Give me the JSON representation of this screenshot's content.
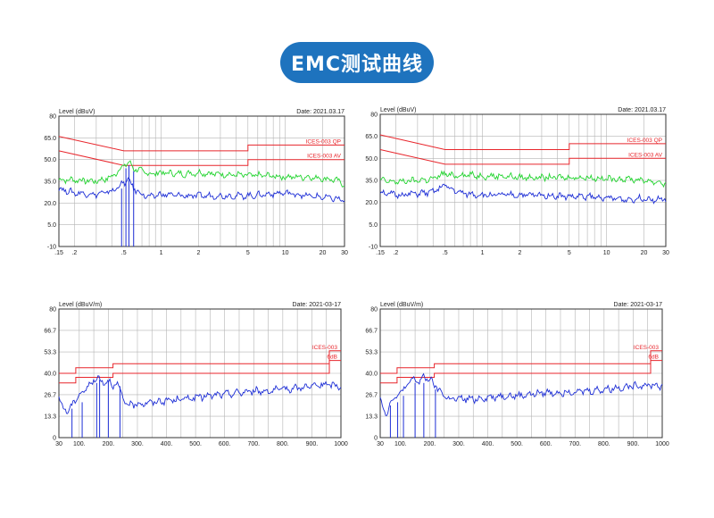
{
  "page_title": "EMC测试曲线",
  "colors": {
    "title_bg": "#1e73be",
    "limit": "#e8262c",
    "trace_peak": "#22d42f",
    "trace_avg": "#1d2ed6",
    "grid": "#b4b4b4"
  },
  "chart_data": [
    {
      "type": "line",
      "scale": "log",
      "ylabel": "Level (dBuV)",
      "date": "Date: 2021.03.17",
      "xlim": [
        0.15,
        30
      ],
      "ylim": [
        -10,
        80
      ],
      "yticks": [
        80,
        65.0,
        50.0,
        35.0,
        20.0,
        5.0,
        -10
      ],
      "ytick_labels": [
        "80",
        "65.0",
        "50.0",
        "35.0",
        "20.0",
        "5.0",
        "-10"
      ],
      "xticks": [
        0.15,
        0.2,
        0.5,
        1,
        2,
        5,
        10,
        20,
        30
      ],
      "xtick_labels": [
        ".15",
        ".2",
        ".5",
        "1",
        "2",
        "5",
        "10",
        "20",
        "30"
      ],
      "limit_labels": [
        "ICES-003 QP",
        "ICES-003 AV"
      ],
      "limits": [
        {
          "x": [
            0.15,
            0.5,
            5,
            5,
            30
          ],
          "y": [
            66,
            56,
            56,
            60,
            60
          ]
        },
        {
          "x": [
            0.15,
            0.5,
            5,
            5,
            30
          ],
          "y": [
            56,
            46,
            46,
            50,
            50
          ]
        }
      ],
      "series": [
        {
          "values": [
            [
              0.15,
              36
            ],
            [
              0.2,
              36
            ],
            [
              0.3,
              35
            ],
            [
              0.4,
              38
            ],
            [
              0.5,
              46
            ],
            [
              0.55,
              48
            ],
            [
              0.6,
              44
            ],
            [
              0.7,
              42
            ],
            [
              0.8,
              40
            ],
            [
              1,
              41
            ],
            [
              1.5,
              40
            ],
            [
              2,
              41
            ],
            [
              3,
              40
            ],
            [
              5,
              39
            ],
            [
              7,
              39
            ],
            [
              10,
              38
            ],
            [
              15,
              38
            ],
            [
              20,
              37
            ],
            [
              25,
              36
            ],
            [
              30,
              33
            ]
          ]
        },
        {
          "values": [
            [
              0.15,
              30
            ],
            [
              0.2,
              27
            ],
            [
              0.3,
              26
            ],
            [
              0.4,
              28
            ],
            [
              0.5,
              34
            ],
            [
              0.55,
              36
            ],
            [
              0.6,
              30
            ],
            [
              0.7,
              26
            ],
            [
              0.8,
              24
            ],
            [
              1,
              26
            ],
            [
              1.5,
              25
            ],
            [
              2,
              25
            ],
            [
              3,
              25
            ],
            [
              5,
              25
            ],
            [
              7,
              26
            ],
            [
              10,
              27
            ],
            [
              15,
              25
            ],
            [
              20,
              24
            ],
            [
              25,
              23
            ],
            [
              30,
              22
            ]
          ]
        }
      ],
      "spikes": [
        [
          0.48,
          30
        ],
        [
          0.52,
          44
        ],
        [
          0.55,
          46
        ],
        [
          0.6,
          42
        ]
      ]
    },
    {
      "type": "line",
      "scale": "log",
      "ylabel": "Level (dBuV)",
      "date": "Date: 2021.03.17",
      "xlim": [
        0.15,
        30
      ],
      "ylim": [
        -10,
        80
      ],
      "yticks": [
        80,
        65.0,
        50.0,
        35.0,
        20.0,
        5.0,
        -10
      ],
      "ytick_labels": [
        "80",
        "65.0",
        "50.0",
        "35.0",
        "20.0",
        "5.0",
        "-10"
      ],
      "xticks": [
        0.15,
        0.2,
        0.5,
        1,
        2,
        5,
        10,
        20,
        30
      ],
      "xtick_labels": [
        ".15",
        ".2",
        ".5",
        "1",
        "2",
        "5",
        "10",
        "20",
        "30"
      ],
      "limit_labels": [
        "ICES-003 QP",
        "ICES-003 AV"
      ],
      "limits": [
        {
          "x": [
            0.15,
            0.5,
            5,
            5,
            30
          ],
          "y": [
            66,
            56,
            56,
            60,
            60
          ]
        },
        {
          "x": [
            0.15,
            0.5,
            5,
            5,
            30
          ],
          "y": [
            56,
            46,
            46,
            50,
            50
          ]
        }
      ],
      "series": [
        {
          "values": [
            [
              0.15,
              35
            ],
            [
              0.2,
              34
            ],
            [
              0.3,
              35
            ],
            [
              0.4,
              36
            ],
            [
              0.5,
              40
            ],
            [
              0.55,
              38
            ],
            [
              0.7,
              39
            ],
            [
              1,
              38
            ],
            [
              1.5,
              38
            ],
            [
              2,
              37
            ],
            [
              3,
              37
            ],
            [
              5,
              37
            ],
            [
              7,
              37
            ],
            [
              10,
              36
            ],
            [
              15,
              36
            ],
            [
              20,
              35
            ],
            [
              25,
              34
            ],
            [
              30,
              33
            ]
          ]
        },
        {
          "values": [
            [
              0.15,
              27
            ],
            [
              0.2,
              25
            ],
            [
              0.3,
              26
            ],
            [
              0.4,
              27
            ],
            [
              0.5,
              32
            ],
            [
              0.55,
              29
            ],
            [
              0.7,
              26
            ],
            [
              1,
              25
            ],
            [
              1.5,
              25
            ],
            [
              2,
              25
            ],
            [
              3,
              25
            ],
            [
              5,
              24
            ],
            [
              7,
              24
            ],
            [
              10,
              23
            ],
            [
              15,
              22
            ],
            [
              20,
              23
            ],
            [
              25,
              22
            ],
            [
              30,
              22
            ]
          ]
        }
      ],
      "spikes": []
    },
    {
      "type": "line",
      "scale": "linear",
      "ylabel": "Level (dBuV/m)",
      "date": "Date: 2021-03-17",
      "xlim": [
        30,
        1000
      ],
      "ylim": [
        0,
        80
      ],
      "yticks": [
        80,
        66.7,
        53.3,
        40.0,
        26.7,
        13.3,
        0
      ],
      "ytick_labels": [
        "80",
        "66.7",
        "53.3",
        "40.0",
        "26.7",
        "13.3",
        "0"
      ],
      "xticks": [
        30,
        100,
        200,
        300,
        400,
        500,
        600,
        700,
        800,
        900,
        1000
      ],
      "xtick_labels": [
        "30",
        "100.",
        "200.",
        "300.",
        "400.",
        "500.",
        "600.",
        "700.",
        "800.",
        "900.",
        "1000"
      ],
      "limit_labels": [
        "ICES-003",
        "6dB"
      ],
      "limits": [
        {
          "x": [
            30,
            88,
            88,
            216,
            216,
            960,
            960,
            1000
          ],
          "y": [
            40,
            40,
            43.5,
            43.5,
            46,
            46,
            54,
            54
          ]
        },
        {
          "x": [
            30,
            88,
            88,
            216,
            216,
            960,
            960,
            1000
          ],
          "y": [
            34,
            34,
            37.5,
            37.5,
            40,
            40,
            48,
            48
          ]
        }
      ],
      "series": [
        {
          "values": [
            [
              30,
              24
            ],
            [
              40,
              20
            ],
            [
              50,
              18
            ],
            [
              60,
              16
            ],
            [
              75,
              20
            ],
            [
              90,
              25
            ],
            [
              110,
              28
            ],
            [
              130,
              32
            ],
            [
              150,
              35
            ],
            [
              165,
              38
            ],
            [
              180,
              34
            ],
            [
              200,
              36
            ],
            [
              215,
              32
            ],
            [
              230,
              34
            ],
            [
              250,
              24
            ],
            [
              270,
              20
            ],
            [
              300,
              21
            ],
            [
              350,
              22
            ],
            [
              400,
              23
            ],
            [
              450,
              24
            ],
            [
              500,
              25
            ],
            [
              550,
              26
            ],
            [
              600,
              27
            ],
            [
              650,
              28
            ],
            [
              700,
              29
            ],
            [
              750,
              29
            ],
            [
              800,
              30
            ],
            [
              850,
              31
            ],
            [
              900,
              32
            ],
            [
              950,
              33
            ],
            [
              1000,
              32
            ]
          ]
        }
      ],
      "spikes": [
        [
          75,
          18
        ],
        [
          110,
          22
        ],
        [
          160,
          34
        ],
        [
          170,
          36
        ],
        [
          200,
          35
        ],
        [
          240,
          32
        ]
      ]
    },
    {
      "type": "line",
      "scale": "linear",
      "ylabel": "Level (dBuV/m)",
      "date": "Date: 2021-03-17",
      "xlim": [
        30,
        1000
      ],
      "ylim": [
        0,
        80
      ],
      "yticks": [
        80,
        66.7,
        53.3,
        40.0,
        26.7,
        13.3,
        0
      ],
      "ytick_labels": [
        "80",
        "66.7",
        "53.3",
        "40.0",
        "26.7",
        "13.3",
        "0"
      ],
      "xticks": [
        30,
        100,
        200,
        300,
        400,
        500,
        600,
        700,
        800,
        900,
        1000
      ],
      "xtick_labels": [
        "30",
        "100.",
        "200.",
        "300.",
        "400.",
        "500.",
        "600.",
        "700.",
        "800.",
        "900.",
        "1000"
      ],
      "limit_labels": [
        "ICES-003",
        "6dB"
      ],
      "limits": [
        {
          "x": [
            30,
            88,
            88,
            216,
            216,
            960,
            960,
            1000
          ],
          "y": [
            40,
            40,
            43.5,
            43.5,
            46,
            46,
            54,
            54
          ]
        },
        {
          "x": [
            30,
            88,
            88,
            216,
            216,
            960,
            960,
            1000
          ],
          "y": [
            34,
            34,
            37.5,
            37.5,
            40,
            40,
            48,
            48
          ]
        }
      ],
      "series": [
        {
          "values": [
            [
              30,
              26
            ],
            [
              40,
              18
            ],
            [
              50,
              14
            ],
            [
              60,
              20
            ],
            [
              75,
              24
            ],
            [
              90,
              26
            ],
            [
              110,
              30
            ],
            [
              130,
              34
            ],
            [
              150,
              37
            ],
            [
              165,
              34
            ],
            [
              180,
              38
            ],
            [
              200,
              36
            ],
            [
              215,
              33
            ],
            [
              230,
              30
            ],
            [
              250,
              26
            ],
            [
              270,
              24
            ],
            [
              300,
              24
            ],
            [
              350,
              24
            ],
            [
              400,
              25
            ],
            [
              450,
              26
            ],
            [
              500,
              26
            ],
            [
              550,
              27
            ],
            [
              600,
              28
            ],
            [
              650,
              28
            ],
            [
              700,
              29
            ],
            [
              750,
              29
            ],
            [
              800,
              30
            ],
            [
              850,
              31
            ],
            [
              900,
              32
            ],
            [
              950,
              33
            ],
            [
              1000,
              32
            ]
          ]
        }
      ],
      "spikes": [
        [
          65,
          20
        ],
        [
          90,
          22
        ],
        [
          110,
          26
        ],
        [
          150,
          34
        ],
        [
          180,
          34
        ],
        [
          220,
          30
        ]
      ]
    }
  ]
}
